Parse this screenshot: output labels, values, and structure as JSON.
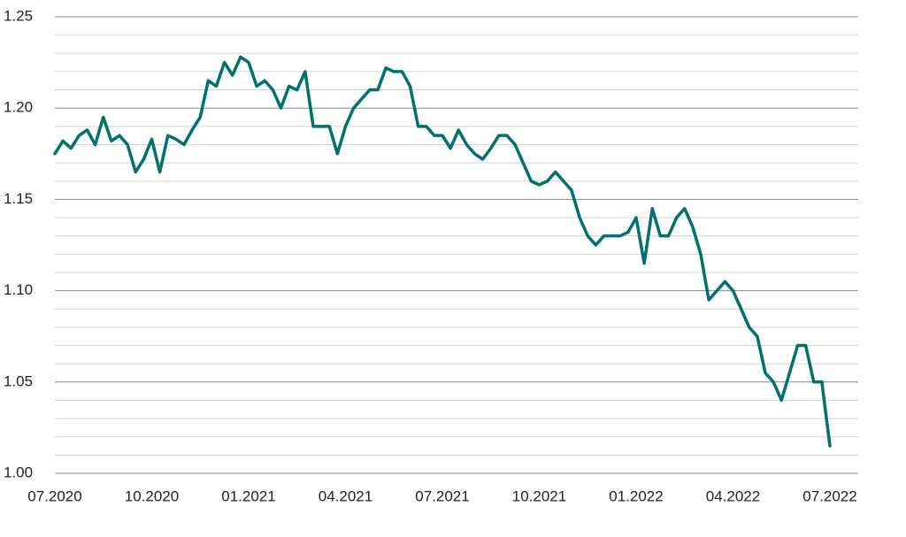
{
  "chart_data": {
    "type": "line",
    "categories": [
      "07.2020",
      null,
      null,
      null,
      null,
      null,
      null,
      null,
      null,
      null,
      null,
      null,
      "10.2020",
      null,
      null,
      null,
      null,
      null,
      null,
      null,
      null,
      null,
      null,
      null,
      "01.2021",
      null,
      null,
      null,
      null,
      null,
      null,
      null,
      null,
      null,
      null,
      null,
      "04.2021",
      null,
      null,
      null,
      null,
      null,
      null,
      null,
      null,
      null,
      null,
      null,
      "07.2021",
      null,
      null,
      null,
      null,
      null,
      null,
      null,
      null,
      null,
      null,
      null,
      "10.2021",
      null,
      null,
      null,
      null,
      null,
      null,
      null,
      null,
      null,
      null,
      null,
      "01.2022",
      null,
      null,
      null,
      null,
      null,
      null,
      null,
      null,
      null,
      null,
      null,
      "04.2022",
      null,
      null,
      null,
      null,
      null,
      null,
      null,
      null,
      null,
      null,
      null,
      "07.2022"
    ],
    "series": [
      {
        "color": "#00716b",
        "values": [
          1.175,
          1.182,
          1.178,
          1.185,
          1.188,
          1.18,
          1.195,
          1.182,
          1.185,
          1.18,
          1.165,
          1.172,
          1.183,
          1.165,
          1.185,
          1.183,
          1.18,
          1.188,
          1.195,
          1.215,
          1.212,
          1.225,
          1.218,
          1.228,
          1.225,
          1.212,
          1.215,
          1.21,
          1.2,
          1.212,
          1.21,
          1.22,
          1.19,
          1.19,
          1.19,
          1.175,
          1.19,
          1.2,
          1.205,
          1.21,
          1.21,
          1.222,
          1.22,
          1.22,
          1.212,
          1.19,
          1.19,
          1.185,
          1.185,
          1.178,
          1.188,
          1.18,
          1.175,
          1.172,
          1.178,
          1.185,
          1.185,
          1.18,
          1.17,
          1.16,
          1.158,
          1.16,
          1.165,
          1.16,
          1.155,
          1.14,
          1.13,
          1.125,
          1.13,
          1.13,
          1.13,
          1.132,
          1.14,
          1.115,
          1.145,
          1.13,
          1.13,
          1.14,
          1.145,
          1.135,
          1.12,
          1.095,
          1.1,
          1.105,
          1.1,
          1.09,
          1.08,
          1.075,
          1.055,
          1.05,
          1.04,
          1.055,
          1.07,
          1.07,
          1.05,
          1.05,
          1.015
        ]
      }
    ],
    "ylim": [
      1.0,
      1.25
    ],
    "yticks": [
      {
        "value": 1.0,
        "label": "1.00"
      },
      {
        "value": 1.05,
        "label": "1.05"
      },
      {
        "value": 1.1,
        "label": "1.10"
      },
      {
        "value": 1.15,
        "label": "1.15"
      },
      {
        "value": 1.2,
        "label": "1.20"
      },
      {
        "value": 1.25,
        "label": "1.25"
      }
    ],
    "minor_yticks": [
      1.01,
      1.02,
      1.03,
      1.04,
      1.06,
      1.07,
      1.08,
      1.09,
      1.11,
      1.12,
      1.13,
      1.14,
      1.16,
      1.17,
      1.18,
      1.19,
      1.21,
      1.22,
      1.23,
      1.24
    ],
    "grid": true
  }
}
